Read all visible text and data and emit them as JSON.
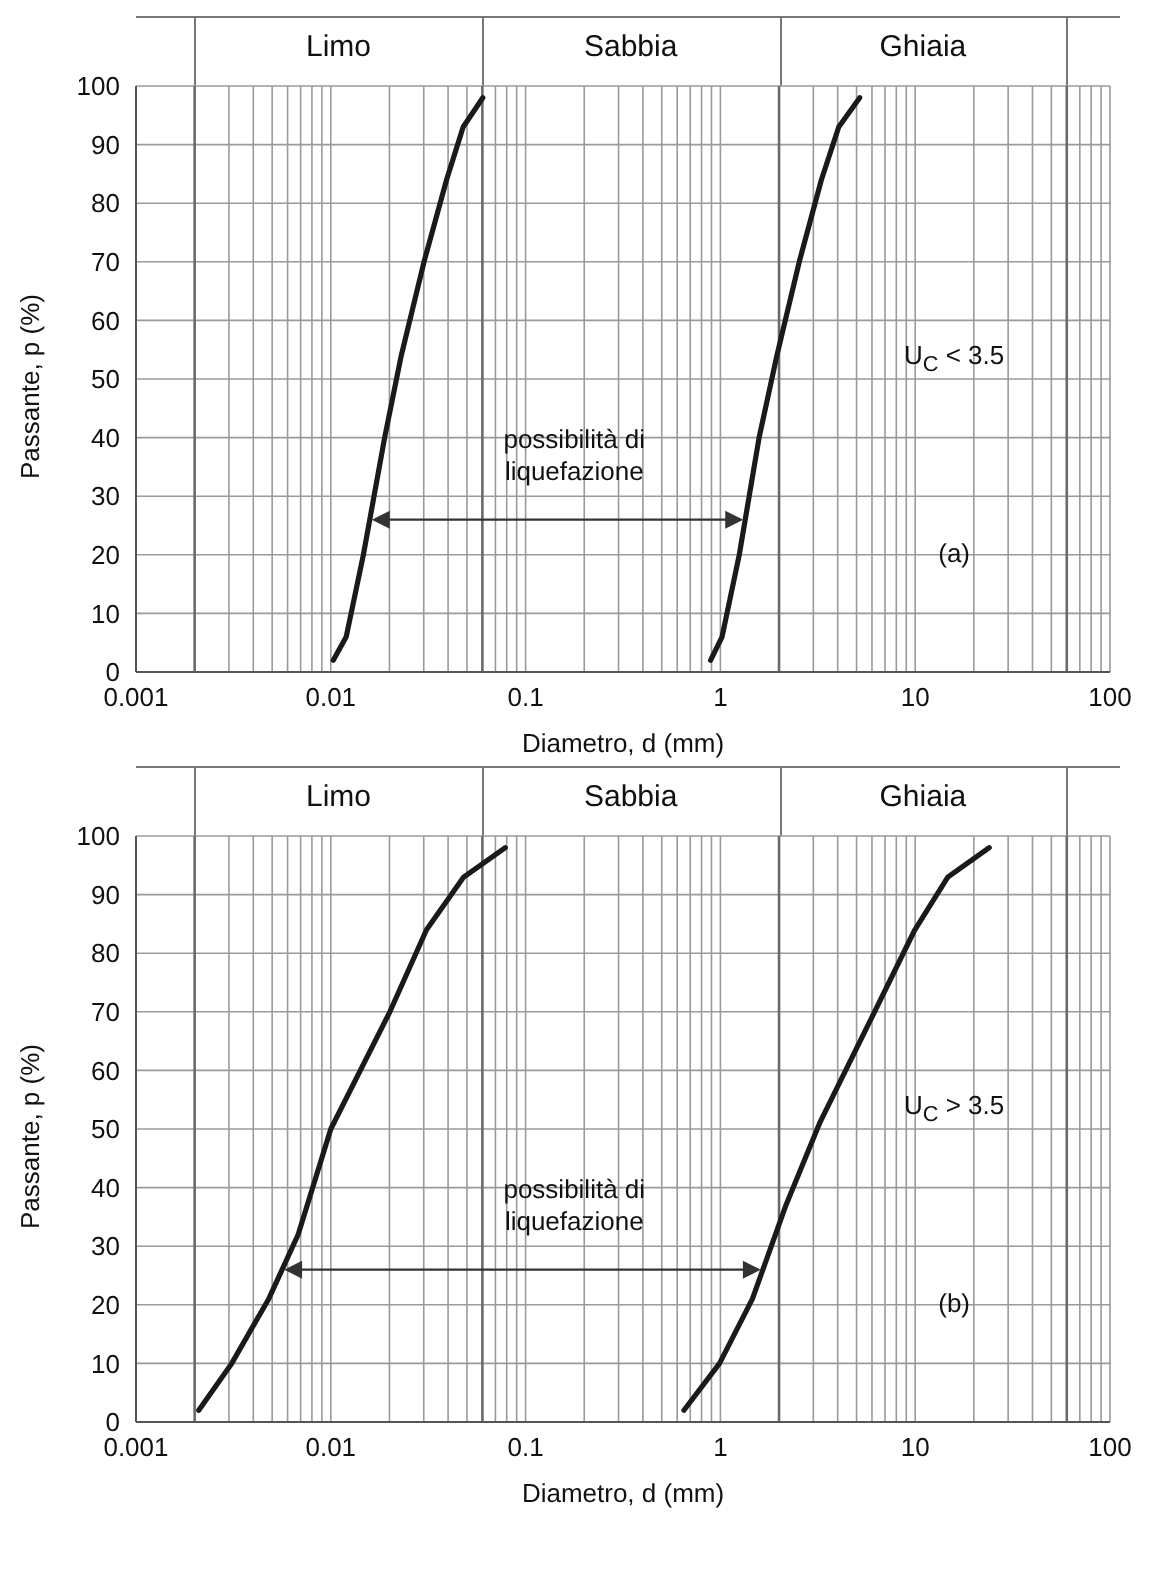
{
  "chart_data": [
    {
      "type": "line",
      "xlabel": "Diametro, d (mm)",
      "ylabel": "Passante, p (%)",
      "log": "x",
      "grid": true,
      "xlim": [
        0.001,
        100
      ],
      "ylim": [
        0,
        100
      ],
      "xticks": [
        0.001,
        {
          "value": 0.003,
          "label": null
        },
        {
          "value": 0.004,
          "label": null
        },
        {
          "value": 0.005,
          "label": null
        },
        {
          "value": 0.006,
          "label": null
        },
        {
          "value": 0.007,
          "label": null
        },
        {
          "value": 0.008,
          "label": null
        },
        {
          "value": 0.009,
          "label": null
        },
        0.01,
        {
          "value": 0.02,
          "label": null
        },
        {
          "value": 0.03,
          "label": null
        },
        {
          "value": 0.04,
          "label": null
        },
        {
          "value": 0.05,
          "label": null
        },
        {
          "value": 0.07,
          "label": null
        },
        {
          "value": 0.08,
          "label": null
        },
        {
          "value": 0.09,
          "label": null
        },
        0.1,
        {
          "value": 0.2,
          "label": null
        },
        {
          "value": 0.3,
          "label": null
        },
        {
          "value": 0.4,
          "label": null
        },
        {
          "value": 0.5,
          "label": null
        },
        {
          "value": 0.6,
          "label": null
        },
        {
          "value": 0.7,
          "label": null
        },
        {
          "value": 0.8,
          "label": null
        },
        {
          "value": 0.9,
          "label": null
        },
        1,
        {
          "value": 3,
          "label": null
        },
        {
          "value": 4,
          "label": null
        },
        {
          "value": 5,
          "label": null
        },
        {
          "value": 6,
          "label": null
        },
        {
          "value": 7,
          "label": null
        },
        {
          "value": 8,
          "label": null
        },
        {
          "value": 9,
          "label": null
        },
        10,
        {
          "value": 20,
          "label": null
        },
        {
          "value": 30,
          "label": null
        },
        {
          "value": 40,
          "label": null
        },
        {
          "value": 50,
          "label": null
        },
        {
          "value": 70,
          "label": null
        },
        {
          "value": 80,
          "label": null
        },
        {
          "value": 90,
          "label": null
        },
        100
      ],
      "yticks": [
        0,
        10,
        20,
        30,
        40,
        50,
        60,
        70,
        80,
        90,
        100
      ],
      "ref_lines": [
        {
          "axis": "x",
          "value": 0.002
        },
        {
          "axis": "x",
          "value": 0.06
        },
        {
          "axis": "x",
          "value": 2
        },
        {
          "axis": "x",
          "value": 60
        }
      ],
      "series": [
        {
          "color": "#1a1a1a",
          "x": [
            0.0103,
            0.012,
            0.0147,
            0.0189,
            0.023,
            0.0301,
            0.0393,
            0.0478,
            0.0603
          ],
          "values": [
            2,
            6,
            20,
            40,
            54,
            70,
            84,
            93,
            98
          ]
        },
        {
          "color": "#1a1a1a",
          "x": [
            0.89,
            1.02,
            1.25,
            1.58,
            1.95,
            2.54,
            3.3,
            4.05,
            5.19
          ],
          "values": [
            2,
            6,
            20,
            40,
            54,
            70,
            84,
            93,
            98
          ]
        }
      ],
      "annotations": [
        "Limo",
        "Sabbia",
        "Ghiaia",
        "possibilità di liquefazione",
        "U$_{C}$ < 3.5",
        "(a)"
      ]
    },
    {
      "type": "line",
      "xlabel": "Diametro, d (mm)",
      "ylabel": "Passante, p (%)",
      "log": "x",
      "grid": true,
      "xlim": [
        0.001,
        100
      ],
      "ylim": [
        0,
        100
      ],
      "xticks": [
        0.001,
        {
          "value": 0.003,
          "label": null
        },
        {
          "value": 0.004,
          "label": null
        },
        {
          "value": 0.005,
          "label": null
        },
        {
          "value": 0.006,
          "label": null
        },
        {
          "value": 0.007,
          "label": null
        },
        {
          "value": 0.008,
          "label": null
        },
        {
          "value": 0.009,
          "label": null
        },
        0.01,
        {
          "value": 0.02,
          "label": null
        },
        {
          "value": 0.03,
          "label": null
        },
        {
          "value": 0.04,
          "label": null
        },
        {
          "value": 0.05,
          "label": null
        },
        {
          "value": 0.07,
          "label": null
        },
        {
          "value": 0.08,
          "label": null
        },
        {
          "value": 0.09,
          "label": null
        },
        0.1,
        {
          "value": 0.2,
          "label": null
        },
        {
          "value": 0.3,
          "label": null
        },
        {
          "value": 0.4,
          "label": null
        },
        {
          "value": 0.5,
          "label": null
        },
        {
          "value": 0.6,
          "label": null
        },
        {
          "value": 0.7,
          "label": null
        },
        {
          "value": 0.8,
          "label": null
        },
        {
          "value": 0.9,
          "label": null
        },
        1,
        {
          "value": 3,
          "label": null
        },
        {
          "value": 4,
          "label": null
        },
        {
          "value": 5,
          "label": null
        },
        {
          "value": 6,
          "label": null
        },
        {
          "value": 7,
          "label": null
        },
        {
          "value": 8,
          "label": null
        },
        {
          "value": 9,
          "label": null
        },
        10,
        {
          "value": 20,
          "label": null
        },
        {
          "value": 30,
          "label": null
        },
        {
          "value": 40,
          "label": null
        },
        {
          "value": 50,
          "label": null
        },
        {
          "value": 70,
          "label": null
        },
        {
          "value": 80,
          "label": null
        },
        {
          "value": 90,
          "label": null
        },
        100
      ],
      "yticks": [
        0,
        10,
        20,
        30,
        40,
        50,
        60,
        70,
        80,
        90,
        100
      ],
      "ref_lines": [
        {
          "axis": "x",
          "value": 0.002
        },
        {
          "axis": "x",
          "value": 0.06
        },
        {
          "axis": "x",
          "value": 2
        },
        {
          "axis": "x",
          "value": 60
        }
      ],
      "series": [
        {
          "color": "#1a1a1a",
          "x": [
            0.0021,
            0.0031,
            0.0048,
            0.0068,
            0.01,
            0.0201,
            0.031,
            0.0481,
            0.0787
          ],
          "values": [
            2,
            10,
            21,
            32,
            50,
            70,
            84,
            93,
            98
          ]
        },
        {
          "color": "#1a1a1a",
          "x": [
            0.65,
            0.99,
            1.46,
            2.17,
            3.23,
            5.98,
            9.96,
            14.7,
            24
          ],
          "values": [
            2,
            10,
            21,
            37,
            51,
            69,
            84,
            93,
            98
          ]
        }
      ],
      "annotations": [
        "Limo",
        "Sabbia",
        "Ghiaia",
        "possibilità di liquefazione",
        "U$_{C}$ > 3.5",
        "(b)"
      ]
    }
  ]
}
